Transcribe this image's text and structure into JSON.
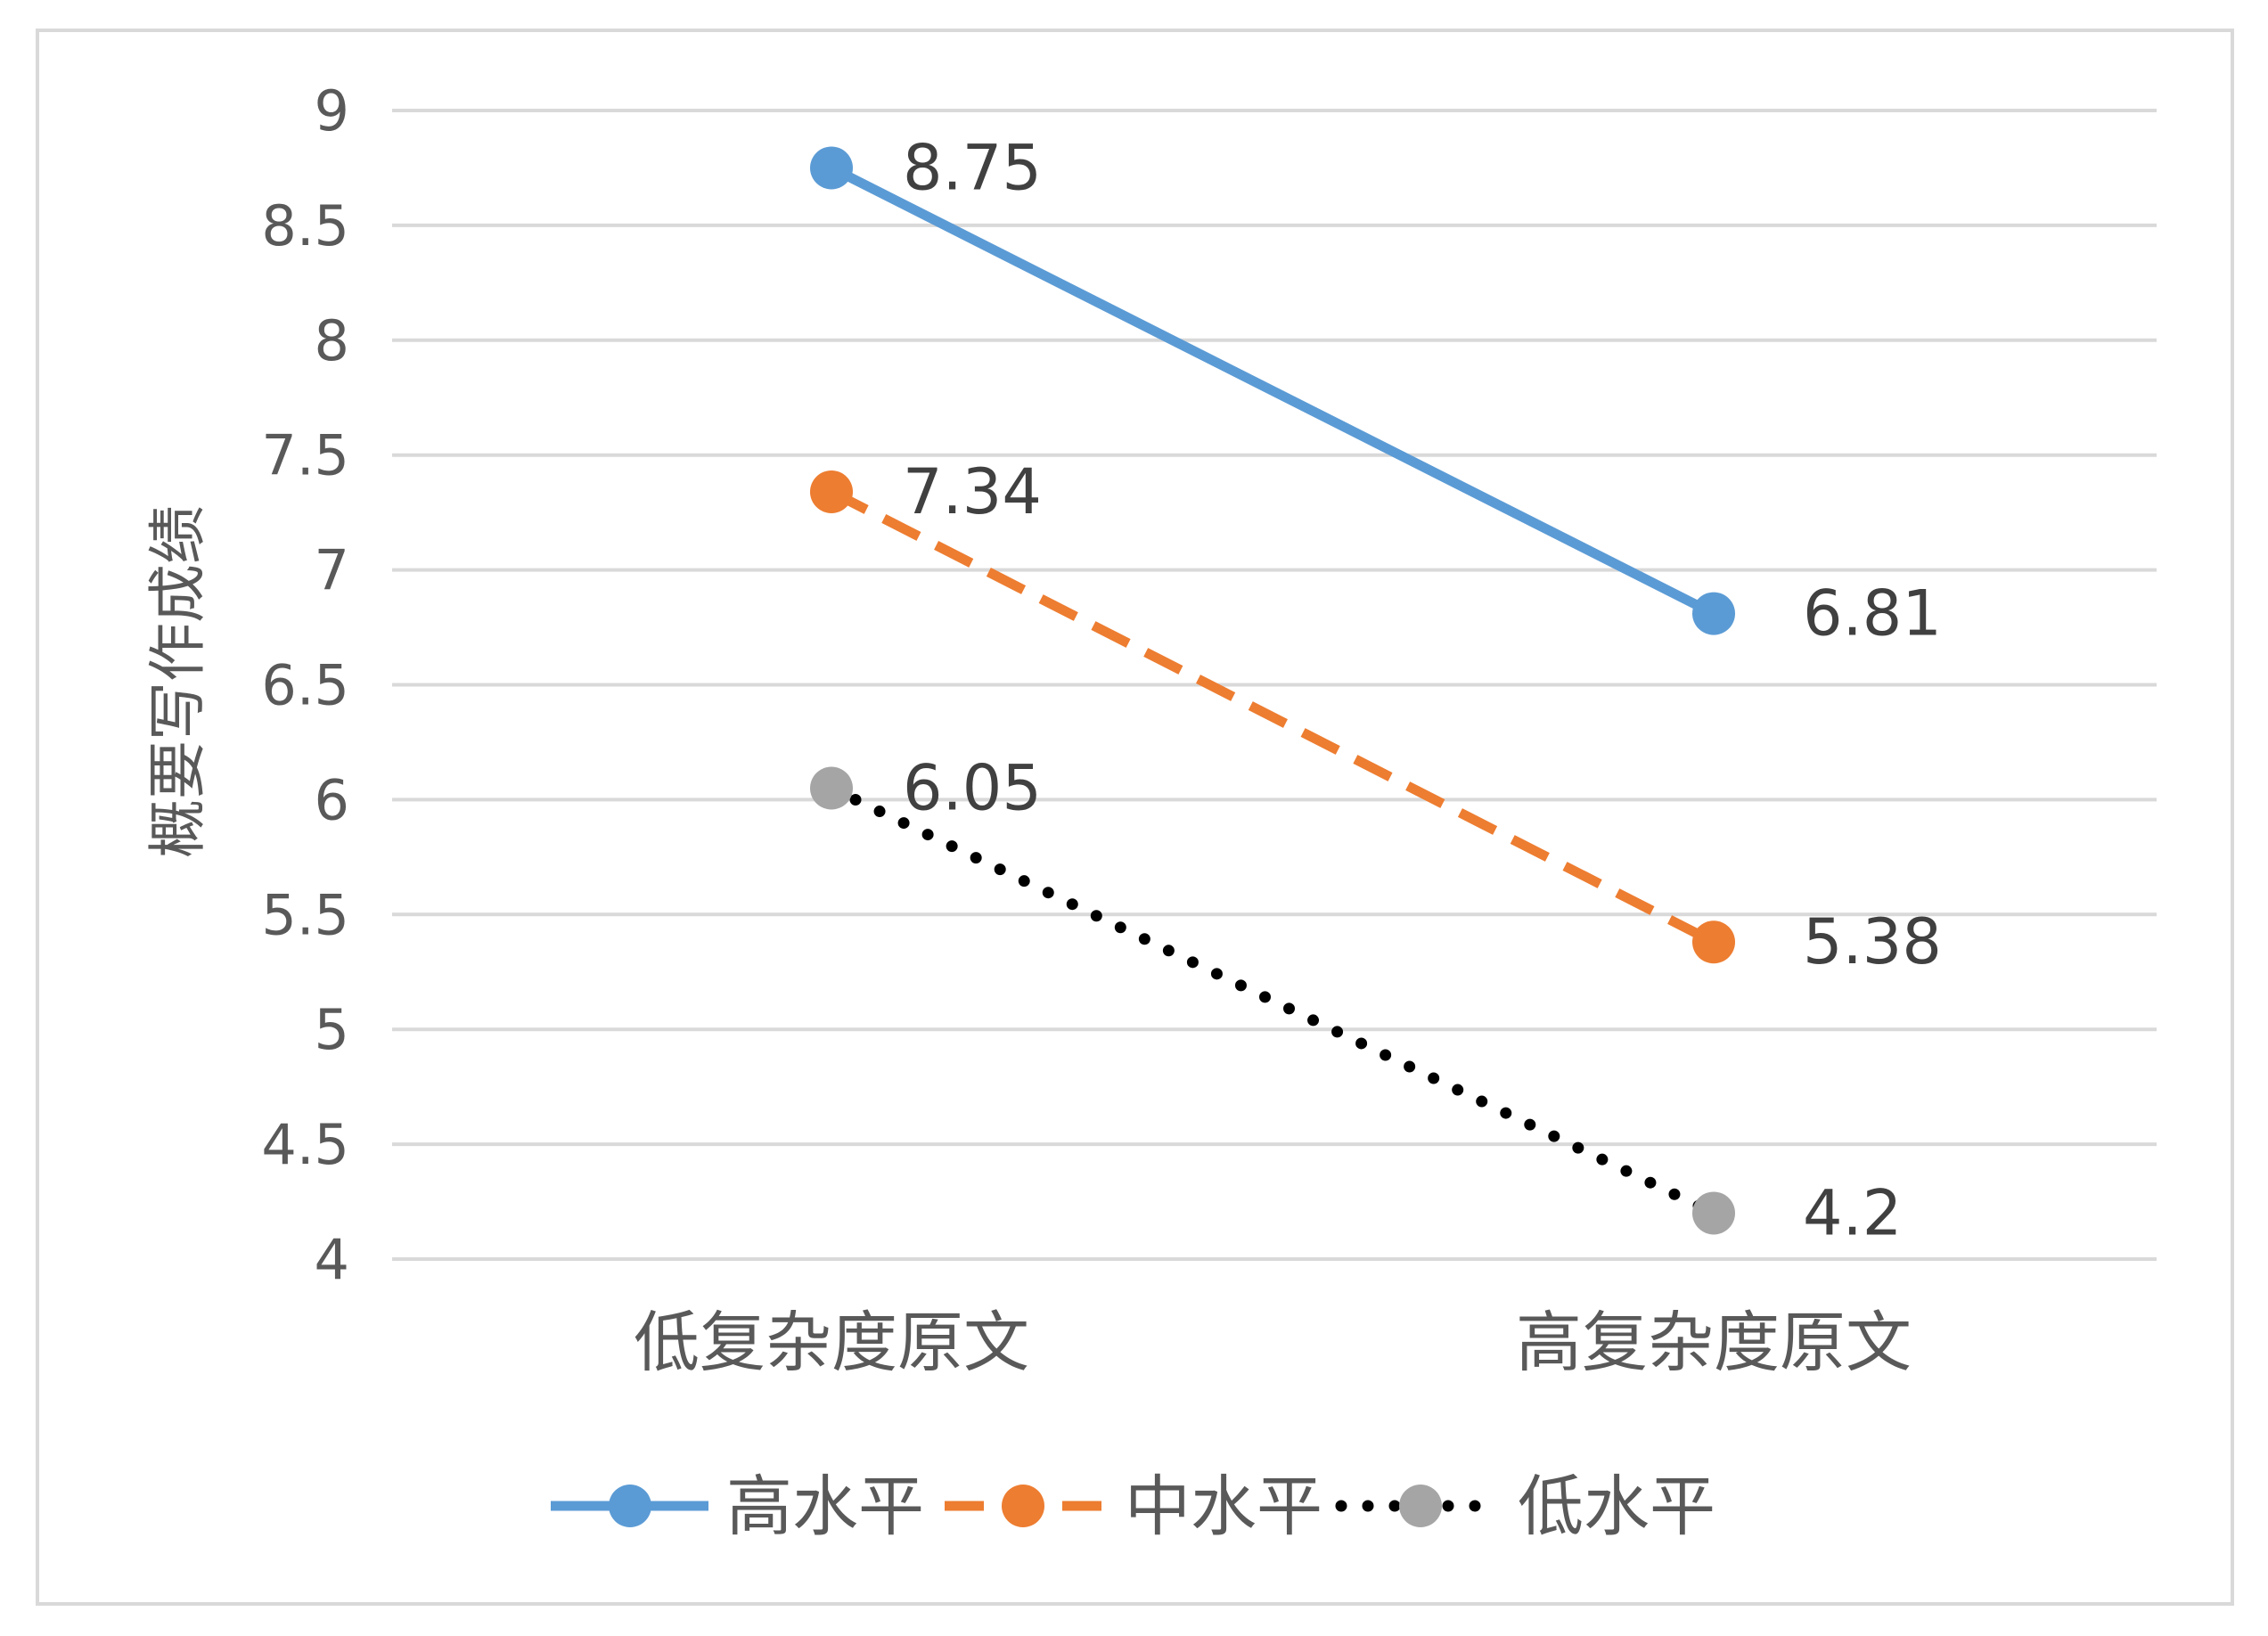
{
  "chart_data": {
    "type": "line",
    "title": "",
    "xlabel": "",
    "ylabel": "概要写作成绩",
    "categories": [
      "低复杂度原文",
      "高复杂度原文"
    ],
    "ylim": [
      4,
      9
    ],
    "yticks": [
      "9",
      "8.5",
      "8",
      "7.5",
      "7",
      "6.5",
      "6",
      "5.5",
      "5",
      "4.5",
      "4"
    ],
    "grid": true,
    "legend_position": "bottom",
    "series": [
      {
        "name": "高水平",
        "values": [
          8.75,
          6.81
        ],
        "labels": [
          "8.75",
          "6.81"
        ],
        "color": "#5b9bd5",
        "line_style": "solid"
      },
      {
        "name": "中水平",
        "values": [
          7.34,
          5.38
        ],
        "labels": [
          "7.34",
          "5.38"
        ],
        "color": "#ed7d31",
        "line_style": "dashed"
      },
      {
        "name": "低水平",
        "values": [
          6.05,
          4.2
        ],
        "labels": [
          "6.05",
          "4.2"
        ],
        "color": "#a5a5a5",
        "line_color": "#000000",
        "line_style": "dotted"
      }
    ]
  }
}
